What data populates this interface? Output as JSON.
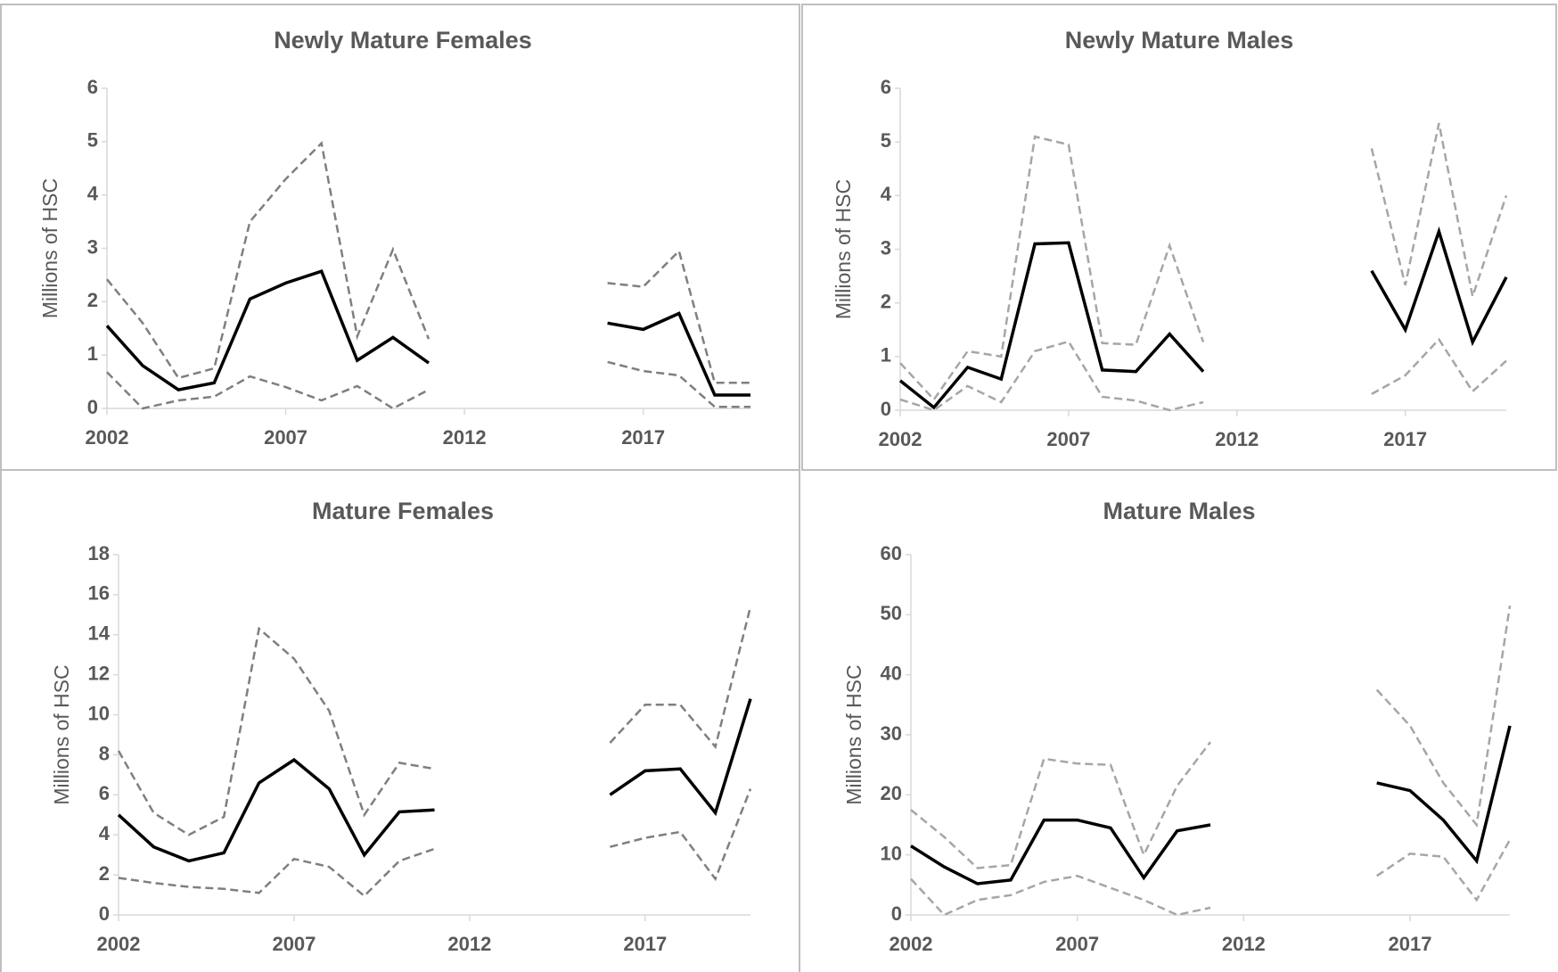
{
  "chart_data": [
    {
      "type": "line",
      "title": "Newly Mature Females",
      "y_label": "Millions of HSC",
      "x": [
        2002,
        2003,
        2004,
        2005,
        2006,
        2007,
        2008,
        2009,
        2010,
        2011,
        2012,
        2013,
        2014,
        2015,
        2016,
        2017,
        2018,
        2019,
        2020
      ],
      "xlim": [
        2002,
        2020
      ],
      "xticks": [
        2002,
        2007,
        2012,
        2017
      ],
      "ylim": [
        0,
        6
      ],
      "yticks": [
        0,
        1,
        2,
        3,
        4,
        5,
        6
      ],
      "series": [
        {
          "color": "#000000",
          "line_style": "solid",
          "values": [
            1.55,
            0.8,
            0.35,
            0.48,
            2.05,
            2.35,
            2.57,
            0.9,
            1.33,
            0.85,
            null,
            null,
            null,
            null,
            1.6,
            1.48,
            1.78,
            0.25,
            0.25
          ]
        },
        {
          "color": "#7f7f7f",
          "line_style": "dashed",
          "values": [
            2.42,
            1.6,
            0.57,
            0.75,
            3.5,
            4.3,
            4.97,
            1.35,
            2.98,
            1.3,
            null,
            null,
            null,
            null,
            2.35,
            2.28,
            2.95,
            0.48,
            0.48
          ]
        },
        {
          "color": "#7f7f7f",
          "line_style": "dashed",
          "values": [
            0.68,
            0,
            0.15,
            0.22,
            0.6,
            0.4,
            0.15,
            0.42,
            0,
            0.35,
            null,
            null,
            null,
            null,
            0.87,
            0.7,
            0.62,
            0.03,
            0.03
          ]
        }
      ]
    },
    {
      "type": "line",
      "title": "Newly Mature Males",
      "y_label": "Millions of HSC",
      "x": [
        2002,
        2003,
        2004,
        2005,
        2006,
        2007,
        2008,
        2009,
        2010,
        2011,
        2012,
        2013,
        2014,
        2015,
        2016,
        2017,
        2018,
        2019,
        2020
      ],
      "xlim": [
        2002,
        2020
      ],
      "xticks": [
        2002,
        2007,
        2012,
        2017
      ],
      "ylim": [
        0,
        6
      ],
      "yticks": [
        0,
        1,
        2,
        3,
        4,
        5,
        6
      ],
      "series": [
        {
          "color": "#000000",
          "line_style": "solid",
          "values": [
            0.55,
            0.05,
            0.8,
            0.58,
            3.1,
            3.12,
            0.75,
            0.72,
            1.42,
            0.72,
            null,
            null,
            null,
            null,
            2.6,
            1.5,
            3.33,
            1.27,
            2.48
          ]
        },
        {
          "color": "#a6a6a6",
          "line_style": "dashed",
          "values": [
            0.88,
            0.2,
            1.1,
            1.0,
            5.1,
            4.95,
            1.25,
            1.22,
            3.07,
            1.27,
            null,
            null,
            null,
            null,
            4.88,
            2.33,
            5.35,
            2.12,
            4.0
          ]
        },
        {
          "color": "#a6a6a6",
          "line_style": "dashed",
          "values": [
            0.2,
            0,
            0.45,
            0.15,
            1.1,
            1.28,
            0.25,
            0.18,
            0,
            0.15,
            null,
            null,
            null,
            null,
            0.3,
            0.65,
            1.32,
            0.35,
            0.92
          ]
        }
      ]
    },
    {
      "type": "line",
      "title": "Mature Females",
      "y_label": "Millions of HSC",
      "x": [
        2002,
        2003,
        2004,
        2005,
        2006,
        2007,
        2008,
        2009,
        2010,
        2011,
        2012,
        2013,
        2014,
        2015,
        2016,
        2017,
        2018,
        2019,
        2020
      ],
      "xlim": [
        2002,
        2020
      ],
      "xticks": [
        2002,
        2007,
        2012,
        2017
      ],
      "ylim": [
        0,
        18
      ],
      "yticks": [
        0,
        2,
        4,
        6,
        8,
        10,
        12,
        14,
        16,
        18
      ],
      "series": [
        {
          "color": "#000000",
          "line_style": "solid",
          "values": [
            5.0,
            3.4,
            2.7,
            3.1,
            6.6,
            7.75,
            6.3,
            3.0,
            5.15,
            5.25,
            null,
            null,
            null,
            null,
            6.0,
            7.2,
            7.3,
            5.1,
            10.8
          ]
        },
        {
          "color": "#7f7f7f",
          "line_style": "dashed",
          "values": [
            8.2,
            5.1,
            4.0,
            4.9,
            14.3,
            12.8,
            10.2,
            5.0,
            7.6,
            7.3,
            null,
            null,
            null,
            null,
            8.6,
            10.5,
            10.5,
            8.4,
            15.4
          ]
        },
        {
          "color": "#7f7f7f",
          "line_style": "dashed",
          "values": [
            1.85,
            1.6,
            1.4,
            1.3,
            1.1,
            2.8,
            2.4,
            0.95,
            2.7,
            3.3,
            null,
            null,
            null,
            null,
            3.4,
            3.85,
            4.15,
            1.8,
            6.3
          ]
        }
      ]
    },
    {
      "type": "line",
      "title": "Mature Males",
      "y_label": "Millions of HSC",
      "x": [
        2002,
        2003,
        2004,
        2005,
        2006,
        2007,
        2008,
        2009,
        2010,
        2011,
        2012,
        2013,
        2014,
        2015,
        2016,
        2017,
        2018,
        2019,
        2020
      ],
      "xlim": [
        2002,
        2020
      ],
      "xticks": [
        2002,
        2007,
        2012,
        2017
      ],
      "ylim": [
        0,
        60
      ],
      "yticks": [
        0,
        10,
        20,
        30,
        40,
        50,
        60
      ],
      "series": [
        {
          "color": "#000000",
          "line_style": "solid",
          "values": [
            11.5,
            8.0,
            5.2,
            5.8,
            15.8,
            15.8,
            14.5,
            6.2,
            14.0,
            15.0,
            null,
            null,
            null,
            null,
            22.0,
            20.7,
            15.8,
            9.0,
            31.5
          ]
        },
        {
          "color": "#a6a6a6",
          "line_style": "dashed",
          "values": [
            17.5,
            13.0,
            7.8,
            8.3,
            26.0,
            25.2,
            25.0,
            10.0,
            21.5,
            28.8,
            null,
            null,
            null,
            null,
            37.5,
            31.5,
            22.0,
            15.0,
            51.5
          ]
        },
        {
          "color": "#a6a6a6",
          "line_style": "dashed",
          "values": [
            6.0,
            0,
            2.5,
            3.3,
            5.5,
            6.5,
            4.5,
            2.5,
            0,
            1.2,
            null,
            null,
            null,
            null,
            6.5,
            10.2,
            9.7,
            2.5,
            12.5
          ]
        }
      ]
    }
  ]
}
